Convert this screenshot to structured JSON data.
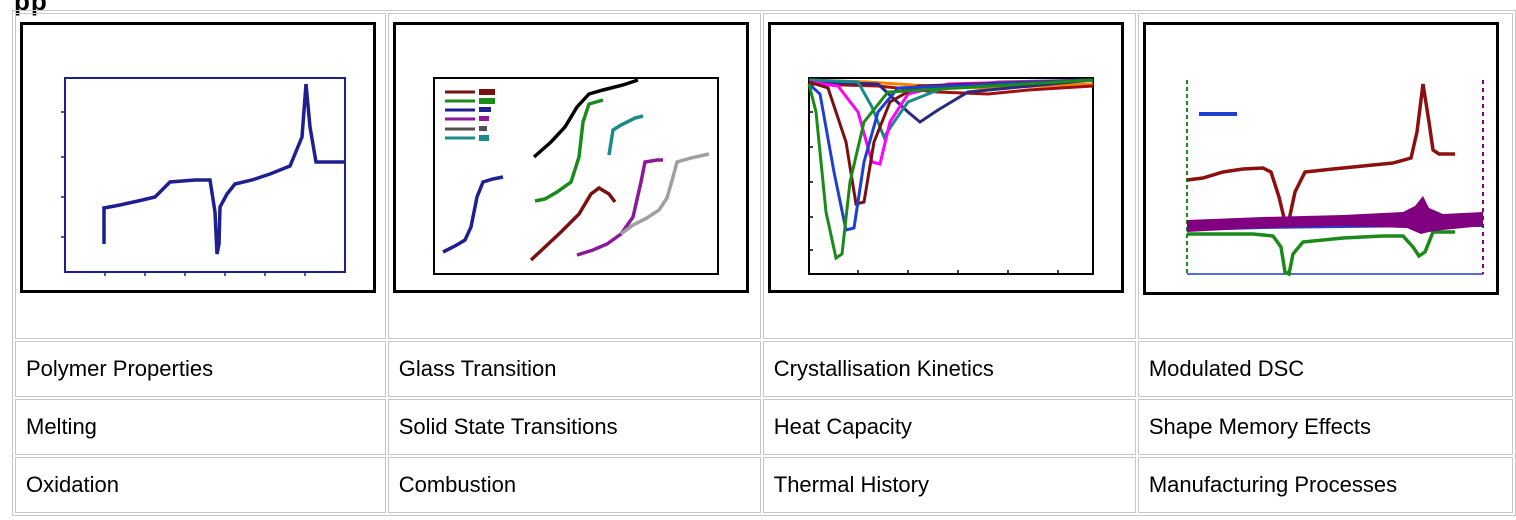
{
  "heading_fragment": "pp",
  "thumbnails": [
    {
      "icon": "polymer-properties-thermogram",
      "line_color": "#1f1f8f"
    },
    {
      "icon": "glass-transition-thermogram",
      "legend_colors": [
        "#7b1010",
        "#1a8a1a",
        "#1f1f8f",
        "#8a1a9a",
        "#505050",
        "#1a8a8a"
      ]
    },
    {
      "icon": "crystallisation-kinetics-thermogram",
      "colors": [
        "#1a8a1a",
        "#1f3fd0",
        "#7b1010",
        "#ff00ff",
        "#1a8a8a",
        "#2a2a80",
        "#ff8000",
        "#a01010"
      ]
    },
    {
      "icon": "modulated-dsc-thermogram",
      "colors": [
        "#8b1010",
        "#800080",
        "#1a8a1a",
        "#1f3fd0"
      ]
    }
  ],
  "rows": [
    [
      "Polymer Properties",
      "Glass Transition",
      "Crystallisation Kinetics",
      "Modulated DSC"
    ],
    [
      "Melting",
      "Solid State Transitions",
      "Heat Capacity",
      "Shape Memory Effects"
    ],
    [
      "Oxidation",
      "Combustion",
      "Thermal History",
      "Manufacturing Processes"
    ]
  ]
}
